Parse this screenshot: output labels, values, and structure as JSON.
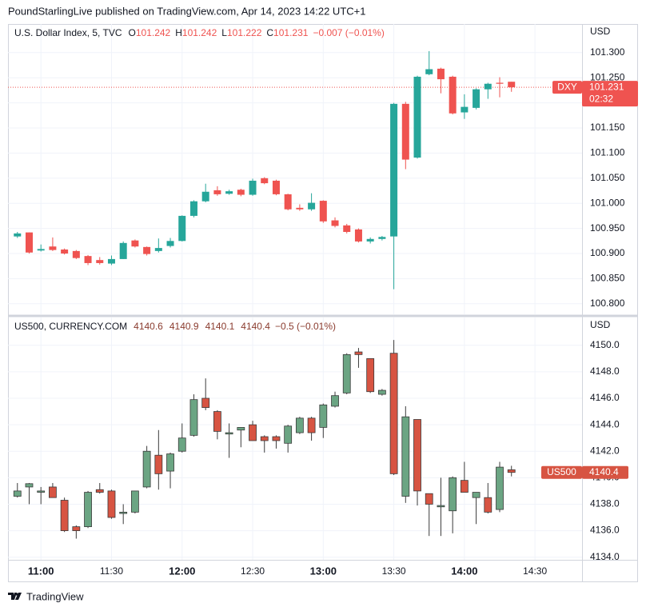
{
  "header": {
    "title": "PoundStarlingLive published on TradingView.com, Apr 14, 2023 14:22 UTC+1"
  },
  "footer": {
    "brand": "TradingView"
  },
  "chart_data": [
    {
      "type": "candlestick",
      "symbol": "U.S. Dollar Index, 5, TVC",
      "ohlc_labels": [
        "O",
        "H",
        "L",
        "C"
      ],
      "ohlc": [
        101.242,
        101.242,
        101.222,
        101.231
      ],
      "change": "−0.007 (−0.01%)",
      "unit": "USD",
      "last": 101.231,
      "last_label": "DXY",
      "countdown": "02:32",
      "up_color": "#26a69a",
      "down_color": "#ef5350",
      "legend_color": "#ef5350",
      "x": [
        "10:50",
        "10:55",
        "11:00",
        "11:05",
        "11:10",
        "11:15",
        "11:20",
        "11:25",
        "11:30",
        "11:35",
        "11:40",
        "11:45",
        "11:50",
        "11:55",
        "12:00",
        "12:05",
        "12:10",
        "12:15",
        "12:20",
        "12:25",
        "12:30",
        "12:35",
        "12:40",
        "12:45",
        "12:50",
        "12:55",
        "13:00",
        "13:05",
        "13:10",
        "13:15",
        "13:20",
        "13:25",
        "13:30",
        "13:35",
        "13:40",
        "13:45",
        "13:50",
        "13:55",
        "14:00",
        "14:05",
        "14:10",
        "14:15",
        "14:20"
      ],
      "open": [
        100.934,
        100.942,
        100.906,
        100.914,
        100.908,
        100.905,
        100.895,
        100.887,
        100.88,
        100.889,
        100.926,
        100.913,
        100.905,
        100.915,
        100.925,
        100.975,
        101.004,
        101.026,
        101.019,
        101.027,
        101.017,
        101.05,
        101.045,
        101.018,
        100.991,
        100.988,
        101.005,
        100.966,
        100.956,
        100.948,
        100.924,
        100.929,
        100.934,
        101.198,
        101.091,
        101.257,
        101.268,
        101.252,
        101.181,
        101.19,
        101.227,
        101.24,
        101.242
      ],
      "high": [
        100.943,
        100.942,
        100.918,
        100.932,
        100.91,
        100.907,
        100.897,
        100.893,
        100.896,
        100.924,
        100.928,
        100.914,
        100.93,
        100.931,
        100.976,
        101.006,
        101.039,
        101.034,
        101.027,
        101.029,
        101.049,
        101.052,
        101.047,
        101.019,
        100.998,
        101.02,
        101.006,
        100.972,
        100.959,
        100.95,
        100.932,
        100.935,
        101.2,
        101.202,
        101.254,
        101.303,
        101.27,
        101.254,
        101.217,
        101.229,
        101.24,
        101.251,
        101.242
      ],
      "low": [
        100.931,
        100.9,
        100.904,
        100.905,
        100.898,
        100.889,
        100.877,
        100.878,
        100.877,
        100.889,
        100.912,
        100.896,
        100.902,
        100.912,
        100.924,
        100.972,
        101.002,
        101.015,
        101.017,
        101.014,
        101.015,
        101.038,
        101.016,
        100.986,
        100.985,
        100.985,
        100.961,
        100.952,
        100.94,
        100.922,
        100.92,
        100.926,
        100.829,
        101.068,
        101.089,
        101.255,
        101.219,
        101.177,
        101.168,
        101.187,
        101.208,
        101.211,
        101.222
      ],
      "close": [
        100.94,
        100.902,
        100.909,
        100.907,
        100.9,
        100.891,
        100.881,
        100.881,
        100.889,
        100.921,
        100.914,
        100.899,
        100.911,
        100.925,
        100.975,
        101.004,
        101.023,
        101.018,
        101.024,
        101.017,
        101.045,
        101.04,
        101.018,
        100.988,
        100.988,
        101.001,
        100.964,
        100.955,
        100.943,
        100.924,
        100.929,
        100.933,
        101.198,
        101.087,
        101.252,
        101.267,
        101.247,
        101.179,
        101.192,
        101.227,
        101.238,
        101.238,
        101.231
      ],
      "xlim": [
        "10:46",
        "14:50"
      ],
      "ylim": [
        100.779,
        101.357
      ],
      "yticks": [
        {
          "value": 100.8,
          "label": "100.800"
        },
        {
          "value": 100.85,
          "label": "100.850"
        },
        {
          "value": 100.9,
          "label": "100.900"
        },
        {
          "value": 100.95,
          "label": "100.950"
        },
        {
          "value": 101,
          "label": "101.000"
        },
        {
          "value": 101.05,
          "label": "101.050"
        },
        {
          "value": 101.1,
          "label": "101.100"
        },
        {
          "value": 101.15,
          "label": "101.150"
        },
        {
          "value": 101.2,
          "label": "101.200"
        },
        {
          "value": 101.25,
          "label": "101.250"
        },
        {
          "value": 101.3,
          "label": "101.300"
        }
      ],
      "grid": true
    },
    {
      "type": "candlestick",
      "symbol": "US500, CURRENCY.COM",
      "ohlc": [
        4140.6,
        4140.9,
        4140.1,
        4140.4
      ],
      "change": "−0.5 (−0.01%)",
      "unit": "USD",
      "last": 4140.4,
      "last_label": "US500",
      "up_color": "#6ba583",
      "down_color": "#d75442",
      "wick_color": "#3b3b3b",
      "legend_color": "#8a3b2e",
      "x": [
        "10:50",
        "10:55",
        "11:00",
        "11:05",
        "11:10",
        "11:15",
        "11:20",
        "11:25",
        "11:30",
        "11:35",
        "11:40",
        "11:45",
        "11:50",
        "11:55",
        "12:00",
        "12:05",
        "12:10",
        "12:15",
        "12:20",
        "12:25",
        "12:30",
        "12:35",
        "12:40",
        "12:45",
        "12:50",
        "12:55",
        "13:00",
        "13:05",
        "13:10",
        "13:15",
        "13:20",
        "13:25",
        "13:30",
        "13:35",
        "13:40",
        "13:45",
        "13:50",
        "13:55",
        "14:00",
        "14:05",
        "14:10",
        "14:15",
        "14:20"
      ],
      "open": [
        4138.6,
        4139.3,
        4138.9,
        4139.3,
        4138.3,
        4136.3,
        4136.3,
        4139.1,
        4139.0,
        4137.3,
        4137.4,
        4139.3,
        4141.7,
        4140.5,
        4142.0,
        4143.2,
        4146.0,
        4145.0,
        4143.3,
        4143.6,
        4144.0,
        4143.1,
        4143.1,
        4142.6,
        4143.4,
        4144.5,
        4143.8,
        4145.4,
        4146.4,
        4149.5,
        4149.0,
        4146.3,
        4149.4,
        4138.6,
        4144.4,
        4138.8,
        4137.8,
        4137.5,
        4139.8,
        4138.5,
        4138.5,
        4137.6,
        4140.6
      ],
      "high": [
        4139.6,
        4139.6,
        4139.3,
        4139.6,
        4138.5,
        4136.4,
        4139.0,
        4139.6,
        4139.1,
        4138.0,
        4139.0,
        4142.4,
        4143.6,
        4141.9,
        4144.1,
        4146.3,
        4147.5,
        4145.1,
        4144.1,
        4143.8,
        4144.3,
        4143.2,
        4143.2,
        4144.0,
        4144.6,
        4144.6,
        4145.6,
        4146.5,
        4149.4,
        4149.8,
        4149.0,
        4146.7,
        4150.4,
        4145.4,
        4144.4,
        4138.8,
        4140.0,
        4140.1,
        4141.2,
        4138.9,
        4139.6,
        4141.2,
        4140.9
      ],
      "low": [
        4138.5,
        4138.0,
        4138.0,
        4138.5,
        4135.9,
        4135.4,
        4136.2,
        4138.8,
        4136.9,
        4136.5,
        4137.3,
        4139.2,
        4139.1,
        4139.2,
        4141.9,
        4143.1,
        4145.1,
        4142.9,
        4141.5,
        4142.3,
        4142.8,
        4141.9,
        4142.2,
        4141.9,
        4143.3,
        4142.8,
        4143.0,
        4145.3,
        4146.3,
        4148.3,
        4146.4,
        4146.2,
        4140.2,
        4138.1,
        4137.9,
        4135.6,
        4135.6,
        4135.8,
        4138.9,
        4136.5,
        4137.3,
        4137.4,
        4140.1
      ],
      "close": [
        4139.0,
        4139.55,
        4139.0,
        4138.5,
        4136.0,
        4136.0,
        4138.9,
        4138.9,
        4137.0,
        4137.4,
        4139.0,
        4142.0,
        4140.3,
        4141.8,
        4143.0,
        4145.9,
        4145.3,
        4143.5,
        4143.4,
        4143.8,
        4142.8,
        4142.8,
        4142.8,
        4143.9,
        4144.5,
        4143.4,
        4145.5,
        4146.2,
        4149.3,
        4149.3,
        4146.5,
        4146.6,
        4140.3,
        4144.6,
        4139.0,
        4138.0,
        4137.9,
        4140.0,
        4138.9,
        4138.9,
        4137.4,
        4140.8,
        4140.4
      ],
      "xlim": [
        "10:46",
        "14:50"
      ],
      "xticks": [
        "11:00",
        "11:30",
        "12:00",
        "12:30",
        "13:00",
        "13:30",
        "14:00",
        "14:30"
      ],
      "ylim": [
        4133.8,
        4152.1
      ],
      "yticks": [
        {
          "value": 4134,
          "label": "4134.0"
        },
        {
          "value": 4136,
          "label": "4136.0"
        },
        {
          "value": 4138,
          "label": "4138.0"
        },
        {
          "value": 4140,
          "label": "4140.0"
        },
        {
          "value": 4142,
          "label": "4142.0"
        },
        {
          "value": 4144,
          "label": "4144.0"
        },
        {
          "value": 4146,
          "label": "4146.0"
        },
        {
          "value": 4148,
          "label": "4148.0"
        },
        {
          "value": 4150,
          "label": "4150.0"
        }
      ],
      "grid": true
    }
  ]
}
